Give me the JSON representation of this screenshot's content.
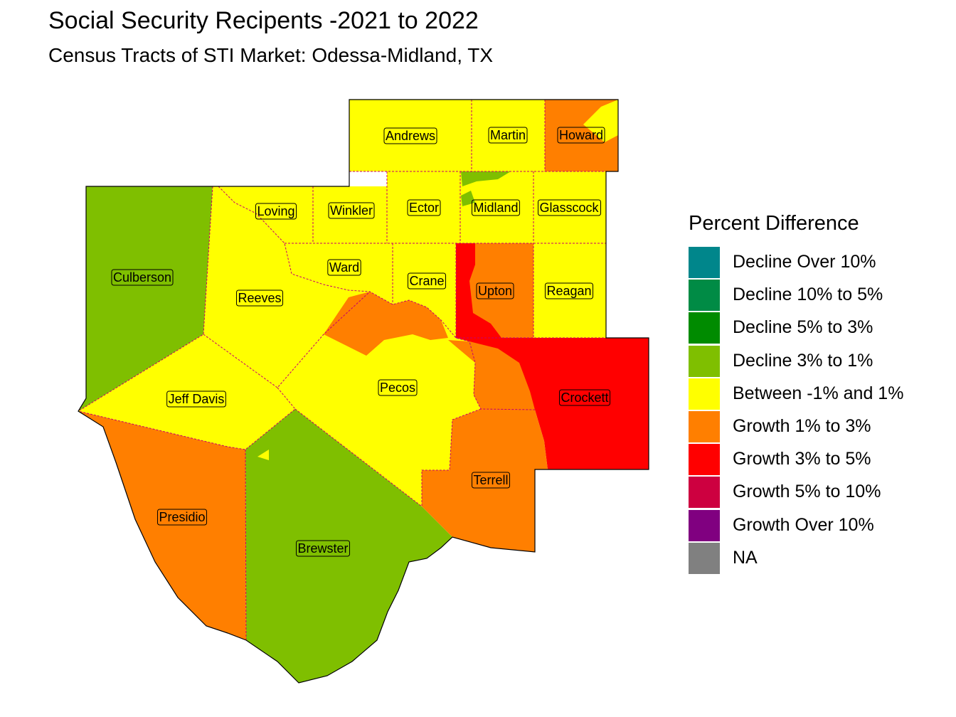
{
  "title": "Social Security Recipents -2021 to 2022",
  "subtitle": "Census Tracts of STI Market: Odessa-Midland, TX",
  "legend": {
    "title": "Percent Difference",
    "items": [
      {
        "label": "Decline Over 10%",
        "color": "#00868B"
      },
      {
        "label": "Decline 10% to 5%",
        "color": "#008B45"
      },
      {
        "label": "Decline 5% to 3%",
        "color": "#008B00"
      },
      {
        "label": "Decline 3% to 1%",
        "color": "#7FBF00"
      },
      {
        "label": "Between -1% and 1%",
        "color": "#FFFF00"
      },
      {
        "label": "Growth 1% to 3%",
        "color": "#FF7F00"
      },
      {
        "label": "Growth 3% to 5%",
        "color": "#FF0000"
      },
      {
        "label": "Growth 5% to 10%",
        "color": "#CD0040"
      },
      {
        "label": "Growth Over 10%",
        "color": "#800080"
      },
      {
        "label": "NA",
        "color": "#808080"
      }
    ]
  },
  "counties": [
    {
      "name": "Andrews",
      "category": "Between -1% and 1%"
    },
    {
      "name": "Martin",
      "category": "Between -1% and 1%"
    },
    {
      "name": "Howard",
      "category": "Growth 1% to 3%"
    },
    {
      "name": "Loving",
      "category": "Between -1% and 1%"
    },
    {
      "name": "Winkler",
      "category": "Between -1% and 1%"
    },
    {
      "name": "Ector",
      "category": "Between -1% and 1%"
    },
    {
      "name": "Midland",
      "category": "Between -1% and 1%"
    },
    {
      "name": "Glasscock",
      "category": "Between -1% and 1%"
    },
    {
      "name": "Culberson",
      "category": "Decline 3% to 1%"
    },
    {
      "name": "Ward",
      "category": "Between -1% and 1%"
    },
    {
      "name": "Crane",
      "category": "Between -1% and 1%"
    },
    {
      "name": "Upton",
      "category": "Growth 1% to 3%"
    },
    {
      "name": "Reagan",
      "category": "Between -1% and 1%"
    },
    {
      "name": "Reeves",
      "category": "Between -1% and 1%"
    },
    {
      "name": "Jeff Davis",
      "category": "Between -1% and 1%"
    },
    {
      "name": "Pecos",
      "category": "Between -1% and 1%"
    },
    {
      "name": "Crockett",
      "category": "Growth 3% to 5%"
    },
    {
      "name": "Terrell",
      "category": "Growth 1% to 3%"
    },
    {
      "name": "Presidio",
      "category": "Growth 1% to 3%"
    },
    {
      "name": "Brewster",
      "category": "Decline 3% to 1%"
    }
  ]
}
